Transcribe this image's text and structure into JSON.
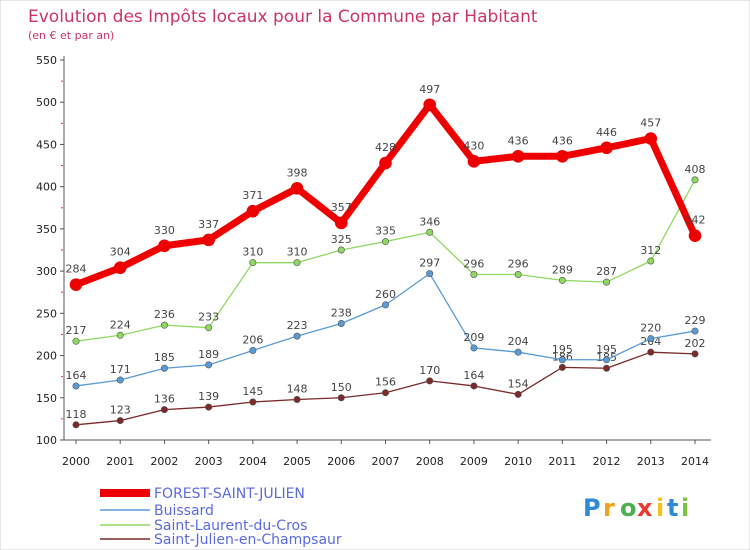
{
  "chart_data": {
    "type": "line",
    "title": "Evolution des Impôts locaux pour la Commune par Habitant",
    "subtitle": "(en € et par an)",
    "x": [
      "2000",
      "2001",
      "2002",
      "2003",
      "2004",
      "2005",
      "2006",
      "2007",
      "2008",
      "2009",
      "2010",
      "2011",
      "2012",
      "2013",
      "2014"
    ],
    "yticks": [
      "100",
      "150",
      "200",
      "250",
      "300",
      "350",
      "400",
      "450",
      "500",
      "550"
    ],
    "ylim": [
      100,
      550
    ],
    "grid": false,
    "legend_position": "bottom-left",
    "series": [
      {
        "name": "FOREST-SAINT-JULIEN",
        "color": "#ee0000",
        "values": [
          284,
          304,
          330,
          337,
          371,
          398,
          357,
          428,
          497,
          430,
          436,
          436,
          446,
          457,
          342
        ],
        "labels": [
          "284",
          "304",
          "330",
          "337",
          "371",
          "398",
          "357",
          "428",
          "497",
          "430",
          "436",
          "436",
          "446",
          "457",
          "342"
        ]
      },
      {
        "name": "Buissard",
        "color": "#5b9bd5",
        "values": [
          164,
          171,
          185,
          189,
          206,
          223,
          238,
          260,
          297,
          209,
          204,
          195,
          195,
          220,
          229
        ],
        "labels": [
          "164",
          "171",
          "185",
          "189",
          "206",
          "223",
          "238",
          "260",
          "297",
          "209",
          "204",
          "195",
          "195",
          "220",
          "229"
        ]
      },
      {
        "name": "Saint-Laurent-du-Cros",
        "color": "#8fd860",
        "values": [
          217,
          224,
          236,
          233,
          310,
          310,
          325,
          335,
          346,
          296,
          296,
          289,
          287,
          312,
          408
        ],
        "labels": [
          "217",
          "224",
          "236",
          "233",
          "310",
          "310",
          "325",
          "335",
          "346",
          "296",
          "296",
          "289",
          "287",
          "312",
          "408"
        ]
      },
      {
        "name": "Saint-Julien-en-Champsaur",
        "color": "#7a2a2a",
        "values": [
          118,
          123,
          136,
          139,
          145,
          148,
          150,
          156,
          170,
          164,
          154,
          186,
          185,
          204,
          202
        ],
        "labels": [
          "118",
          "123",
          "136",
          "139",
          "145",
          "148",
          "150",
          "156",
          "170",
          "164",
          "154",
          "186",
          "185",
          "204",
          "202"
        ]
      }
    ]
  },
  "logo": {
    "letters": [
      "P",
      "r",
      "o",
      "x",
      "i",
      "t",
      "i"
    ],
    "colors": [
      "#2e8bd8",
      "#f4a21c",
      "#4caf50",
      "#e63b2e",
      "#f4c21c",
      "#2e8bd8",
      "#7cc242"
    ]
  }
}
